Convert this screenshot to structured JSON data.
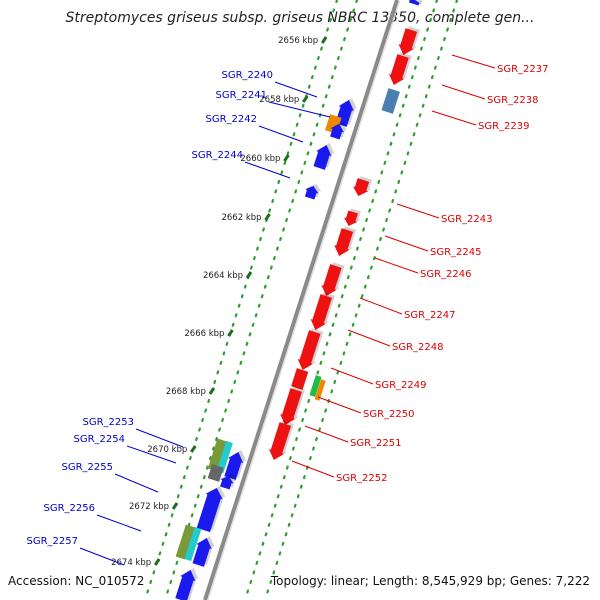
{
  "title": "Streptomyces griseus subsp. griseus NBRC 13350, complete gen...",
  "footer": {
    "accession": "Accession: NC_010572",
    "summary": "Topology: linear; Length: 8,545,929 bp; Genes: 7,222"
  },
  "colors": {
    "backbone": "#8a8a8a",
    "dots": "#2e9e2e",
    "forward_label": "#0000cc",
    "reverse_label": "#dd0000",
    "gene_forward": "#1a1aee",
    "gene_reverse": "#ee1111"
  },
  "ruler": [
    {
      "pos": 2656,
      "label": "2656 kbp"
    },
    {
      "pos": 2658,
      "label": "2658 kbp"
    },
    {
      "pos": 2660,
      "label": "2660 kbp"
    },
    {
      "pos": 2662,
      "label": "2662 kbp"
    },
    {
      "pos": 2664,
      "label": "2664 kbp"
    },
    {
      "pos": 2666,
      "label": "2666 kbp"
    },
    {
      "pos": 2668,
      "label": "2668 kbp"
    },
    {
      "pos": 2670,
      "label": "2670 kbp"
    },
    {
      "pos": 2672,
      "label": "2672 kbp"
    },
    {
      "pos": 2674,
      "label": "2674 kbp"
    }
  ],
  "genes_forward": [
    {
      "name": "SGR_2240",
      "label": "SGR_2240"
    },
    {
      "name": "SGR_2241",
      "label": "SGR_2241"
    },
    {
      "name": "SGR_2242",
      "label": "SGR_2242"
    },
    {
      "name": "SGR_2244",
      "label": "SGR_2244"
    },
    {
      "name": "SGR_2253",
      "label": "SGR_2253"
    },
    {
      "name": "SGR_2254",
      "label": "SGR_2254"
    },
    {
      "name": "SGR_2255",
      "label": "SGR_2255"
    },
    {
      "name": "SGR_2256",
      "label": "SGR_2256"
    },
    {
      "name": "SGR_2257",
      "label": "SGR_2257"
    }
  ],
  "genes_reverse": [
    {
      "name": "SGR_2237",
      "label": "SGR_2237"
    },
    {
      "name": "SGR_2238",
      "label": "SGR_2238"
    },
    {
      "name": "SGR_2239",
      "label": "SGR_2239"
    },
    {
      "name": "SGR_2243",
      "label": "SGR_2243"
    },
    {
      "name": "SGR_2245",
      "label": "SGR_2245"
    },
    {
      "name": "SGR_2246",
      "label": "SGR_2246"
    },
    {
      "name": "SGR_2247",
      "label": "SGR_2247"
    },
    {
      "name": "SGR_2248",
      "label": "SGR_2248"
    },
    {
      "name": "SGR_2249",
      "label": "SGR_2249"
    },
    {
      "name": "SGR_2250",
      "label": "SGR_2250"
    },
    {
      "name": "SGR_2251",
      "label": "SGR_2251"
    },
    {
      "name": "SGR_2252",
      "label": "SGR_2252"
    }
  ]
}
